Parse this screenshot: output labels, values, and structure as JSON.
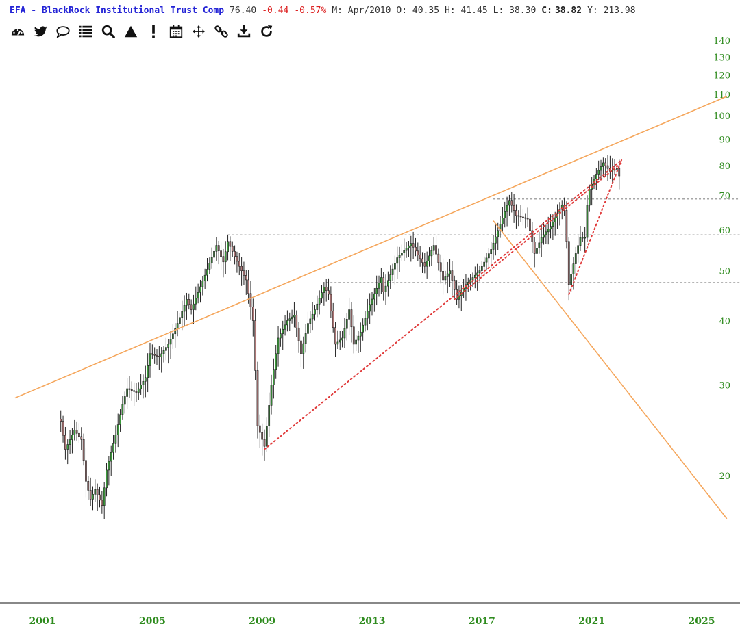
{
  "header": {
    "symbol_label": "EFA - BlackRock Institutional Trust Comp",
    "last": "76.40",
    "change": "-0.44",
    "change_pct": "-0.57%",
    "period": "M: Apr/2010",
    "open": "O: 40.35",
    "high": "H: 41.45",
    "low": "L: 38.30",
    "close_label": "C:",
    "close_value": "38.82",
    "y_value": "Y: 213.98"
  },
  "toolbar": {
    "icons": [
      "dashboard-icon",
      "twitter-icon",
      "comment-icon",
      "list-icon",
      "search-icon",
      "triangle-icon",
      "alert-icon",
      "calendar-icon",
      "move-icon",
      "link-icon",
      "download-icon",
      "refresh-icon"
    ]
  },
  "colors": {
    "up_candle": "#3c9a3c",
    "down_candle": "#b07878",
    "trendline": "#f5a65b",
    "dotted_red": "#e03a3a",
    "reference_gray": "#888888",
    "axis_text": "#2e8b1e"
  },
  "chart_data": {
    "type": "candlestick",
    "scale": "log",
    "ylim": [
      14,
      150
    ],
    "xlim": [
      "2000-01",
      "2025-12"
    ],
    "y_ticks": [
      20,
      30,
      40,
      50,
      60,
      70,
      80,
      90,
      100,
      110,
      120,
      130,
      140
    ],
    "x_ticks": [
      "2001",
      "2005",
      "2009",
      "2013",
      "2017",
      "2021",
      "2025"
    ],
    "price_path": [
      [
        "2001-09",
        25.5
      ],
      [
        "2001-11",
        22.5
      ],
      [
        "2002-03",
        24.5
      ],
      [
        "2002-06",
        23.5
      ],
      [
        "2002-08",
        19.5
      ],
      [
        "2002-10",
        18
      ],
      [
        "2002-12",
        18.8
      ],
      [
        "2003-03",
        17.5
      ],
      [
        "2003-05",
        20.5
      ],
      [
        "2003-09",
        24
      ],
      [
        "2003-12",
        27.5
      ],
      [
        "2004-02",
        29.5
      ],
      [
        "2004-06",
        29
      ],
      [
        "2004-10",
        31
      ],
      [
        "2004-12",
        34.5
      ],
      [
        "2005-04",
        34
      ],
      [
        "2005-08",
        36
      ],
      [
        "2005-12",
        39.5
      ],
      [
        "2006-04",
        44
      ],
      [
        "2006-06",
        42
      ],
      [
        "2006-12",
        49
      ],
      [
        "2007-05",
        56
      ],
      [
        "2007-08",
        52
      ],
      [
        "2007-10",
        57
      ],
      [
        "2007-12",
        54.5
      ],
      [
        "2008-03",
        51
      ],
      [
        "2008-06",
        48
      ],
      [
        "2008-09",
        40
      ],
      [
        "2008-10",
        32
      ],
      [
        "2008-11",
        25
      ],
      [
        "2009-02",
        22.8
      ],
      [
        "2009-05",
        30
      ],
      [
        "2009-08",
        37
      ],
      [
        "2009-12",
        40
      ],
      [
        "2010-03",
        41
      ],
      [
        "2010-06",
        34.5
      ],
      [
        "2010-09",
        39.5
      ],
      [
        "2010-12",
        42
      ],
      [
        "2011-04",
        46.5
      ],
      [
        "2011-06",
        45
      ],
      [
        "2011-09",
        36
      ],
      [
        "2011-12",
        37
      ],
      [
        "2012-03",
        42
      ],
      [
        "2012-05",
        36
      ],
      [
        "2012-08",
        38
      ],
      [
        "2012-12",
        43
      ],
      [
        "2013-05",
        48.5
      ],
      [
        "2013-06",
        45.5
      ],
      [
        "2013-12",
        53
      ],
      [
        "2014-06",
        56.5
      ],
      [
        "2014-12",
        51
      ],
      [
        "2015-04",
        56
      ],
      [
        "2015-08",
        48
      ],
      [
        "2015-11",
        50
      ],
      [
        "2016-02",
        44
      ],
      [
        "2016-06",
        47
      ],
      [
        "2016-10",
        49
      ],
      [
        "2016-12",
        50
      ],
      [
        "2017-05",
        55
      ],
      [
        "2017-12",
        67
      ],
      [
        "2018-01",
        68.5
      ],
      [
        "2018-04",
        64
      ],
      [
        "2018-09",
        63
      ],
      [
        "2018-12",
        54
      ],
      [
        "2019-03",
        58
      ],
      [
        "2019-07",
        61
      ],
      [
        "2019-12",
        67
      ],
      [
        "2020-01",
        65.5
      ],
      [
        "2020-02",
        57
      ],
      [
        "2020-03",
        47
      ],
      [
        "2020-06",
        54
      ],
      [
        "2020-08",
        58
      ],
      [
        "2020-10",
        58
      ],
      [
        "2020-11",
        67
      ],
      [
        "2020-12",
        72
      ],
      [
        "2021-03",
        77
      ],
      [
        "2021-06",
        81
      ],
      [
        "2021-09",
        78
      ],
      [
        "2021-12",
        79
      ],
      [
        "2022-01",
        76.4
      ]
    ],
    "reference_lines": [
      {
        "level": 68.9,
        "start": "2017-06"
      },
      {
        "level": 58.7,
        "start": "2007-10"
      },
      {
        "level": 47.4,
        "start": "2011-05"
      }
    ],
    "trendlines": [
      {
        "start": [
          "2000-01",
          28.3
        ],
        "end": [
          "2025-12",
          109
        ]
      },
      {
        "start": [
          "2017-06",
          62.5
        ],
        "end": [
          "2025-12",
          16.5
        ]
      }
    ],
    "dotted_lines": [
      {
        "start": [
          "2009-02",
          22.5
        ],
        "end": [
          "2022-02",
          82
        ]
      },
      {
        "start": [
          "2016-01",
          44
        ],
        "end": [
          "2022-02",
          81
        ]
      },
      {
        "start": [
          "2020-03",
          45
        ],
        "end": [
          "2022-02",
          82
        ]
      }
    ]
  }
}
